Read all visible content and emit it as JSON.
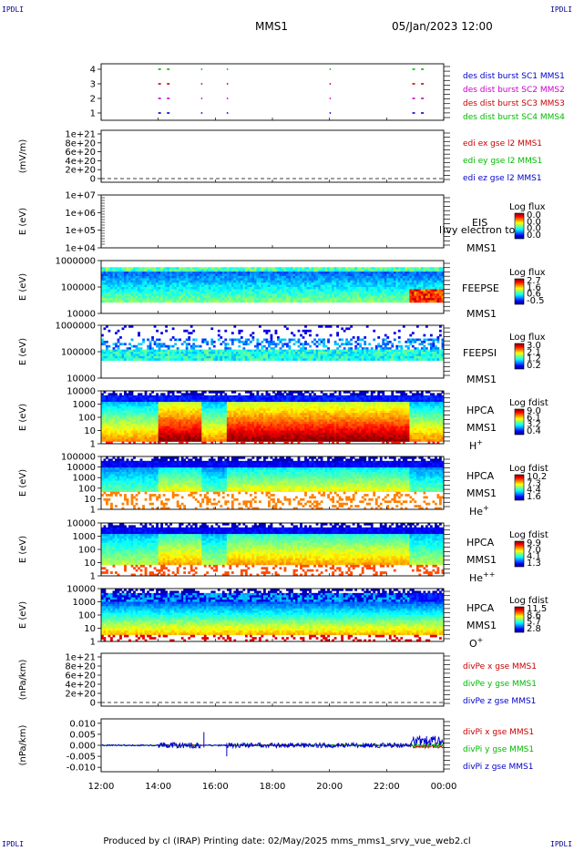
{
  "header": {
    "corner_label": "IPDLI",
    "spacecraft": "MMS1",
    "datetime": "05/Jan/2023 12:00"
  },
  "footer": {
    "text": "Produced by cl (IRAP)   Printing date: 02/May/2025   mms_mms1_srvy_vue_web2.cl"
  },
  "colors": {
    "blue": "#0000cc",
    "magenta": "#cc00cc",
    "red": "#cc0000",
    "green": "#00bb00"
  },
  "x_axis": {
    "range": [
      "12:00",
      "00:00"
    ],
    "tick_labels": [
      "12:00",
      "14:00",
      "16:00",
      "18:00",
      "20:00",
      "22:00",
      "00:00"
    ]
  },
  "chart_data": [
    {
      "type": "scatter",
      "id": "burst",
      "ylim": [
        0.5,
        4.5
      ],
      "ytick_labels": [
        "4",
        "3",
        "2",
        "1"
      ],
      "legend": [
        "des dist burst SC1 MMS1",
        "des dist burst SC2 MMS2",
        "des dist burst SC3 MMS3",
        "des dist burst SC4 MMS4"
      ],
      "legend_colors": [
        "#0000cc",
        "#cc00cc",
        "#cc0000",
        "#00bb00"
      ],
      "burst_intervals_hours": [
        [
          14.0,
          14.4
        ],
        [
          15.5,
          15.6
        ],
        [
          16.4,
          16.5
        ],
        [
          20.0,
          20.05
        ],
        [
          22.9,
          23.3
        ]
      ]
    },
    {
      "type": "line",
      "id": "edi",
      "ylabel": "(mV/m)",
      "ytick_labels": [
        "1e+21",
        "8e+20",
        "6e+20",
        "4e+20",
        "2e+20",
        "0"
      ],
      "ylim": [
        0,
        1e+21
      ],
      "legend": [
        "edi ex gse l2 MMS1",
        "edi ey gse l2 MMS1",
        "edi ez gse l2 MMS1"
      ],
      "legend_colors": [
        "#cc0000",
        "#00bb00",
        "#0000cc"
      ]
    },
    {
      "type": "heatmap",
      "id": "eis",
      "ylabel": "E (eV)",
      "ytick_labels": [
        "1e+07",
        "1e+06",
        "1e+05",
        "1e+04"
      ],
      "ylim": [
        10000.0,
        10000000.0
      ],
      "side_labels": [
        "EIS",
        "MMS1"
      ],
      "overlay_text": "l)vy electron to",
      "colorbar_title": "Log flux",
      "colorbar_ticks": [
        "0.0",
        "0.0",
        "0.0",
        "0.0"
      ]
    },
    {
      "type": "heatmap",
      "id": "feepse",
      "ylabel": "E (eV)",
      "ytick_labels": [
        "1000000",
        "100000",
        "10000"
      ],
      "ylim": [
        10000.0,
        1000000.0
      ],
      "side_labels": [
        "FEEPSE",
        "MMS1"
      ],
      "colorbar_title": "Log flux",
      "colorbar_ticks": [
        "2.7",
        "1.6",
        "0.6",
        "-0.5"
      ]
    },
    {
      "type": "heatmap",
      "id": "feepsi",
      "ylabel": "E (eV)",
      "ytick_labels": [
        "1000000",
        "100000",
        "10000"
      ],
      "ylim": [
        10000.0,
        1000000.0
      ],
      "side_labels": [
        "FEEPSI",
        "MMS1"
      ],
      "colorbar_title": "Log flux",
      "colorbar_ticks": [
        "3.0",
        "2.1",
        "1.2",
        "0.2"
      ]
    },
    {
      "type": "heatmap",
      "id": "hpca_h",
      "ylabel": "E (eV)",
      "ytick_labels": [
        "10000",
        "1000",
        "100",
        "10",
        "1"
      ],
      "ylim": [
        1,
        10000.0
      ],
      "side_labels": [
        "HPCA",
        "MMS1"
      ],
      "species": "H",
      "species_sup": "+",
      "colorbar_title": "Log fdist",
      "colorbar_ticks": [
        "9.0",
        "6.1",
        "3.2",
        "0.4"
      ]
    },
    {
      "type": "heatmap",
      "id": "hpca_he",
      "ylabel": "E (eV)",
      "ytick_labels": [
        "100000",
        "10000",
        "1000",
        "100",
        "10",
        "1"
      ],
      "ylim": [
        1,
        100000.0
      ],
      "side_labels": [
        "HPCA",
        "MMS1"
      ],
      "species": "He",
      "species_sup": "+",
      "colorbar_title": "Log fdist",
      "colorbar_ticks": [
        "10.2",
        "7.3",
        "4.4",
        "1.6"
      ]
    },
    {
      "type": "heatmap",
      "id": "hpca_hepp",
      "ylabel": "E (eV)",
      "ytick_labels": [
        "10000",
        "1000",
        "100",
        "10",
        "1"
      ],
      "ylim": [
        1,
        10000.0
      ],
      "side_labels": [
        "HPCA",
        "MMS1"
      ],
      "species": "He",
      "species_sup": "++",
      "colorbar_title": "Log fdist",
      "colorbar_ticks": [
        "9.9",
        "7.0",
        "4.1",
        "1.3"
      ]
    },
    {
      "type": "heatmap",
      "id": "hpca_o",
      "ylabel": "E (eV)",
      "ytick_labels": [
        "10000",
        "1000",
        "100",
        "10",
        "1"
      ],
      "ylim": [
        1,
        10000.0
      ],
      "side_labels": [
        "HPCA",
        "MMS1"
      ],
      "species": "O",
      "species_sup": "+",
      "colorbar_title": "Log fdist",
      "colorbar_ticks": [
        "11.5",
        "8.6",
        "5.7",
        "2.8"
      ]
    },
    {
      "type": "line",
      "id": "divpe",
      "ylabel": "(nPa/km)",
      "ytick_labels": [
        "1e+21",
        "8e+20",
        "6e+20",
        "4e+20",
        "2e+20",
        "0"
      ],
      "ylim": [
        0,
        1e+21
      ],
      "legend": [
        "divPe x gse MMS1",
        "divPe y gse MMS1",
        "divPe z gse MMS1"
      ],
      "legend_colors": [
        "#cc0000",
        "#00bb00",
        "#0000cc"
      ]
    },
    {
      "type": "line",
      "id": "divpi",
      "ylabel": "(nPa/km)",
      "ytick_labels": [
        "0.010",
        "0.005",
        "0.000",
        "-0.005",
        "-0.010"
      ],
      "ylim": [
        -0.012,
        0.012
      ],
      "legend": [
        "divPi x gse MMS1",
        "divPi y gse MMS1",
        "divPi z gse MMS1"
      ],
      "legend_colors": [
        "#cc0000",
        "#00bb00",
        "#0000cc"
      ]
    }
  ]
}
